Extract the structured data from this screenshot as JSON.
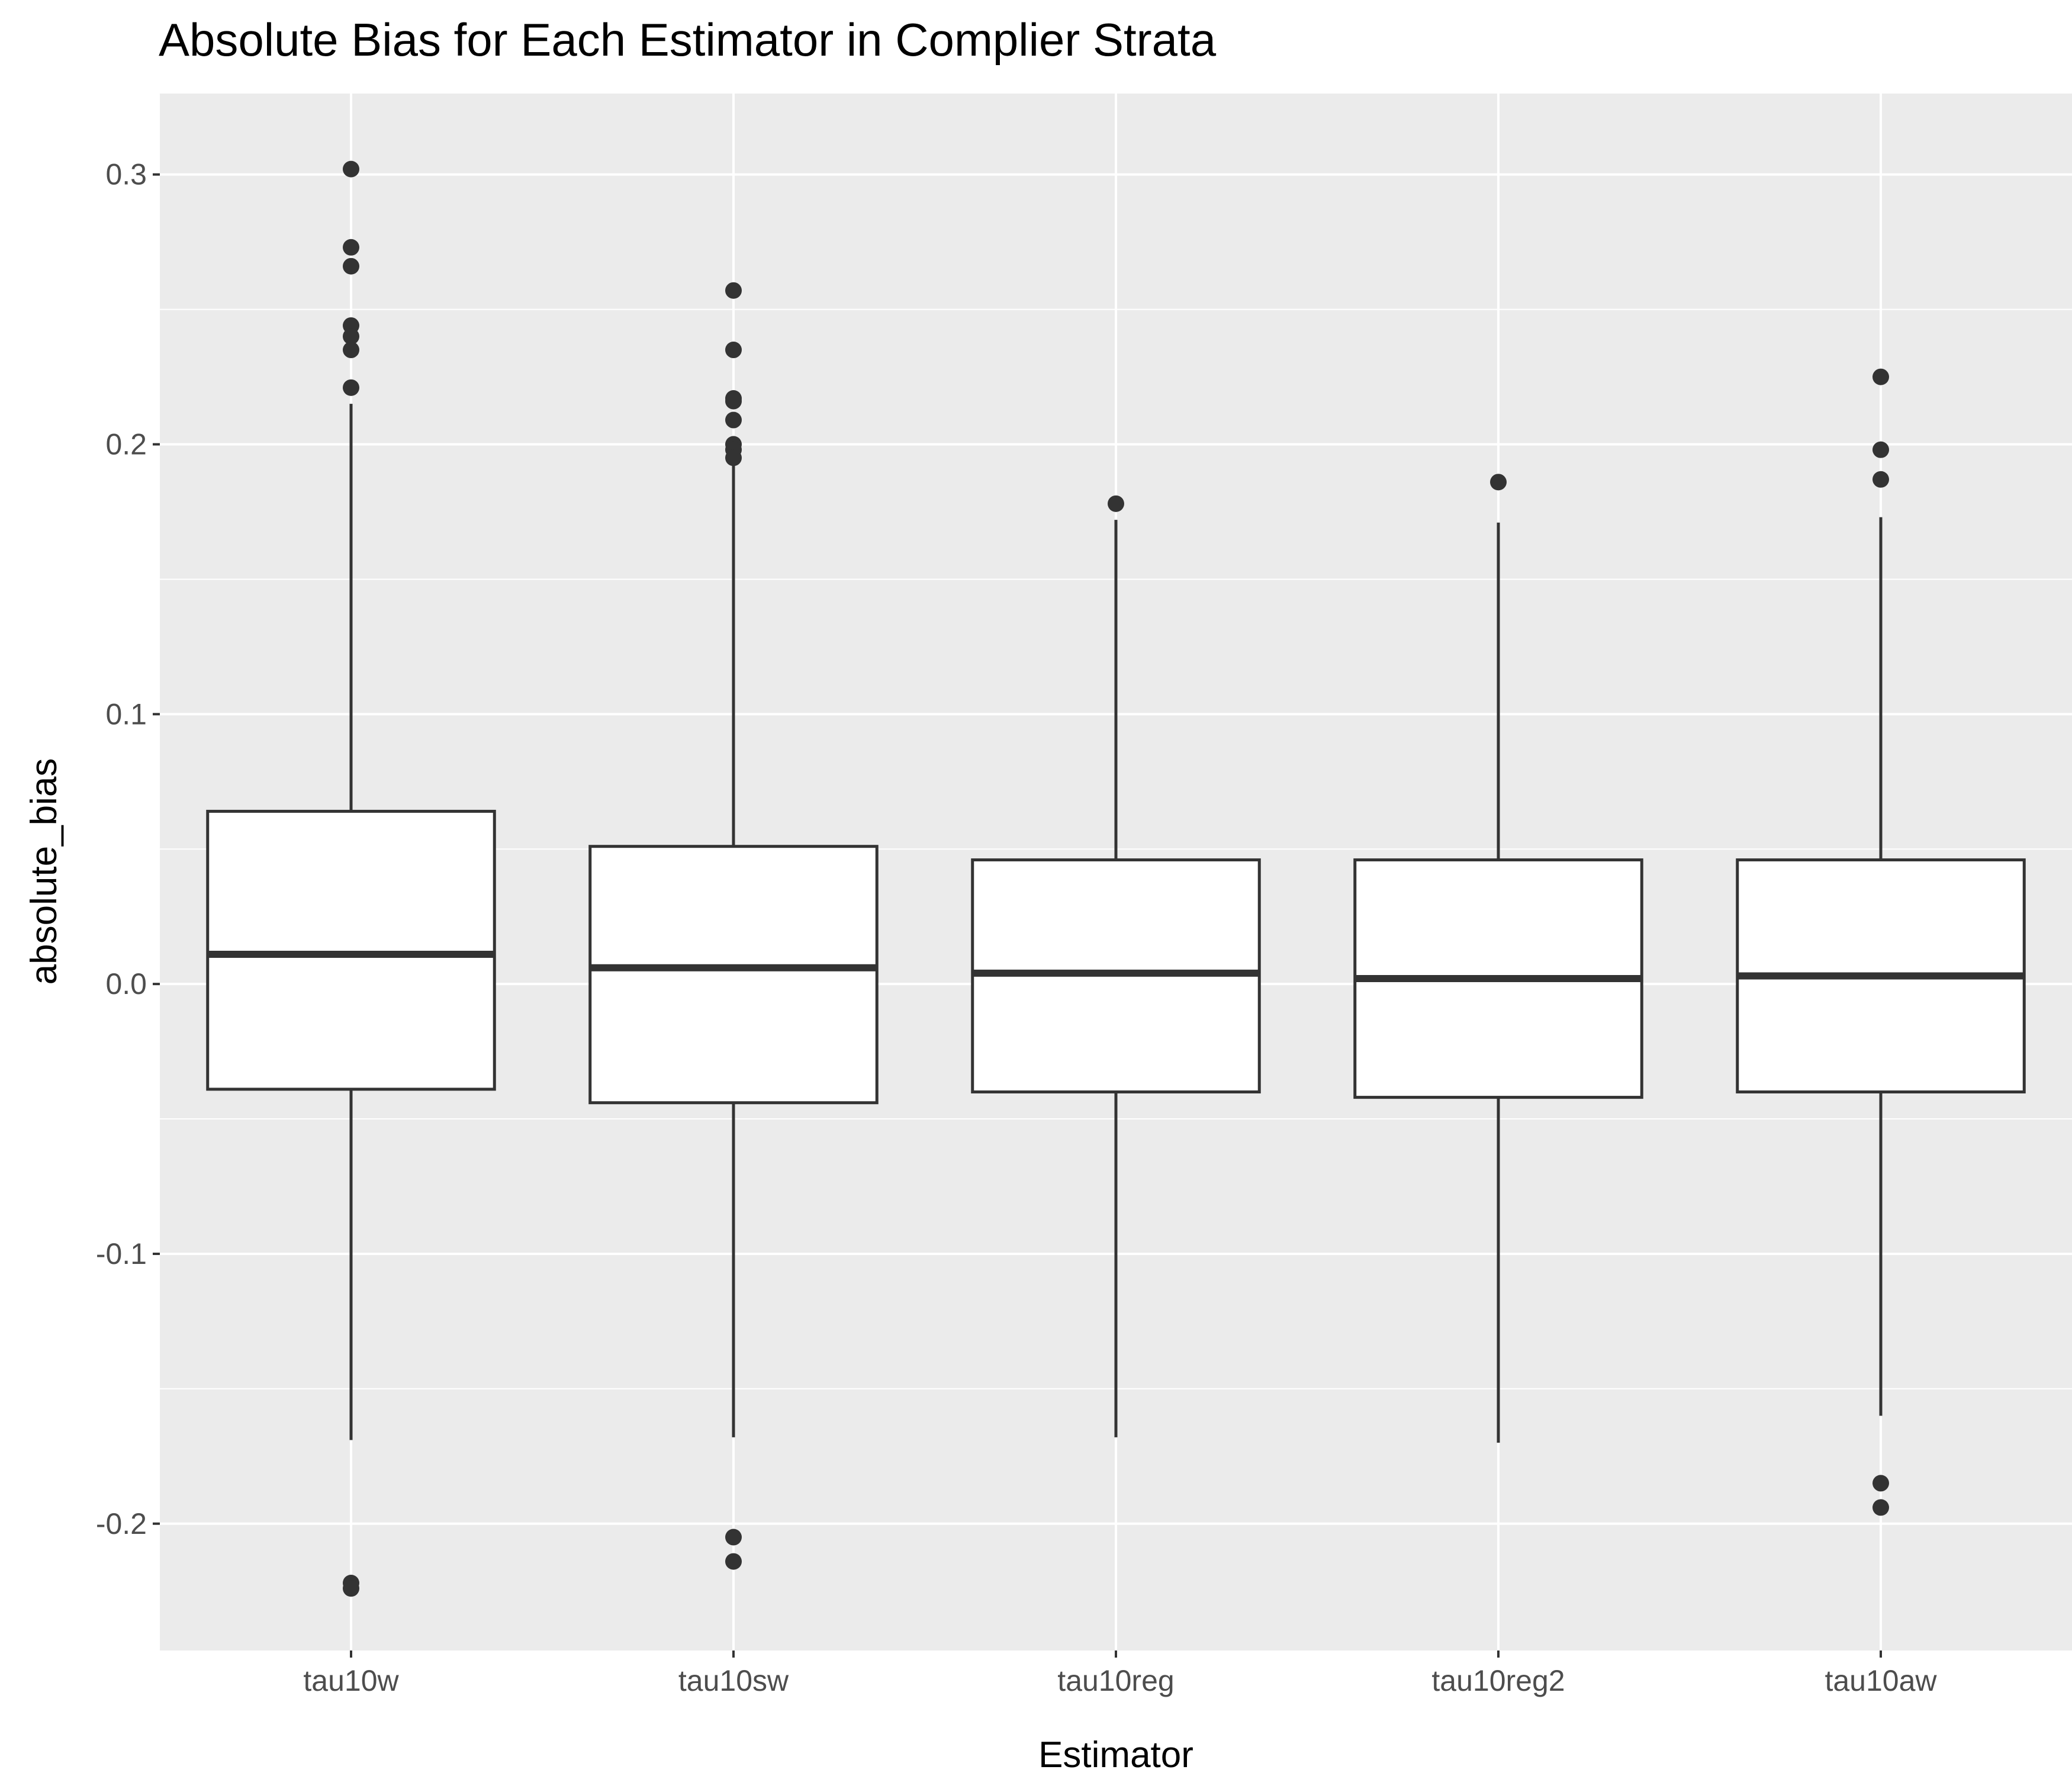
{
  "chart_data": {
    "type": "boxplot",
    "title": "Absolute Bias for Each Estimator in Complier Strata",
    "xlabel": "Estimator",
    "ylabel": "absolute_bias",
    "ylim": [
      -0.247,
      0.33
    ],
    "yticks": [
      -0.2,
      -0.1,
      0.0,
      0.1,
      0.2,
      0.3
    ],
    "ytick_labels": [
      "-0.2",
      "-0.1",
      "0.0",
      "0.1",
      "0.2",
      "0.3"
    ],
    "grid": true,
    "colors": {
      "panel": "#ebebeb",
      "grid": "#ffffff",
      "box_fill": "#ffffff",
      "box_line": "#333333",
      "outlier": "#333333"
    },
    "categories": [
      "tau10w",
      "tau10sw",
      "tau10reg",
      "tau10reg2",
      "tau10aw"
    ],
    "boxes": [
      {
        "name": "tau10w",
        "whisker_low": -0.169,
        "q1": -0.039,
        "median": 0.011,
        "q3": 0.064,
        "whisker_high": 0.215,
        "outliers": [
          0.302,
          0.273,
          0.266,
          0.244,
          0.24,
          0.235,
          0.221,
          -0.222,
          -0.224
        ]
      },
      {
        "name": "tau10sw",
        "whisker_low": -0.168,
        "q1": -0.044,
        "median": 0.006,
        "q3": 0.051,
        "whisker_high": 0.193,
        "outliers": [
          0.257,
          0.235,
          0.217,
          0.216,
          0.209,
          0.2,
          0.198,
          0.195,
          -0.205,
          -0.214
        ]
      },
      {
        "name": "tau10reg",
        "whisker_low": -0.168,
        "q1": -0.04,
        "median": 0.004,
        "q3": 0.046,
        "whisker_high": 0.172,
        "outliers": [
          0.178
        ]
      },
      {
        "name": "tau10reg2",
        "whisker_low": -0.17,
        "q1": -0.042,
        "median": 0.002,
        "q3": 0.046,
        "whisker_high": 0.171,
        "outliers": [
          0.186
        ]
      },
      {
        "name": "tau10aw",
        "whisker_low": -0.16,
        "q1": -0.04,
        "median": 0.003,
        "q3": 0.046,
        "whisker_high": 0.173,
        "outliers": [
          0.225,
          0.198,
          0.187,
          -0.185,
          -0.194
        ]
      }
    ]
  }
}
